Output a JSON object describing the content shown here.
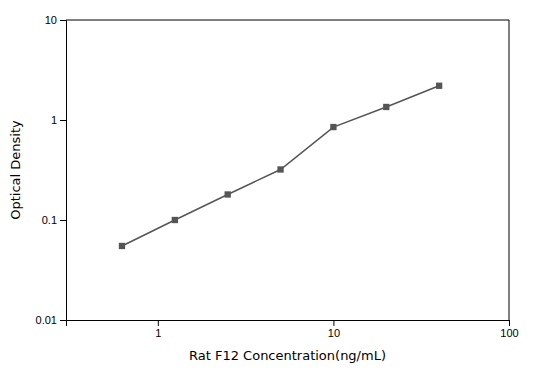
{
  "chart_data": {
    "type": "line",
    "x": [
      0.625,
      1.25,
      2.5,
      5,
      10,
      20,
      40
    ],
    "values": [
      0.055,
      0.1,
      0.18,
      0.32,
      0.85,
      1.35,
      2.2
    ],
    "xlabel": "Rat F12 Concentration(ng/mL)",
    "ylabel": "Optical Density",
    "log": true,
    "xlim": [
      0.3,
      100
    ],
    "ylim": [
      0.01,
      10
    ],
    "xticks": [
      1,
      10,
      100
    ],
    "yticks": [
      0.01,
      0.1,
      1,
      10
    ],
    "color": "#555555",
    "marker": "square",
    "line_style": "solid",
    "grid": false
  }
}
